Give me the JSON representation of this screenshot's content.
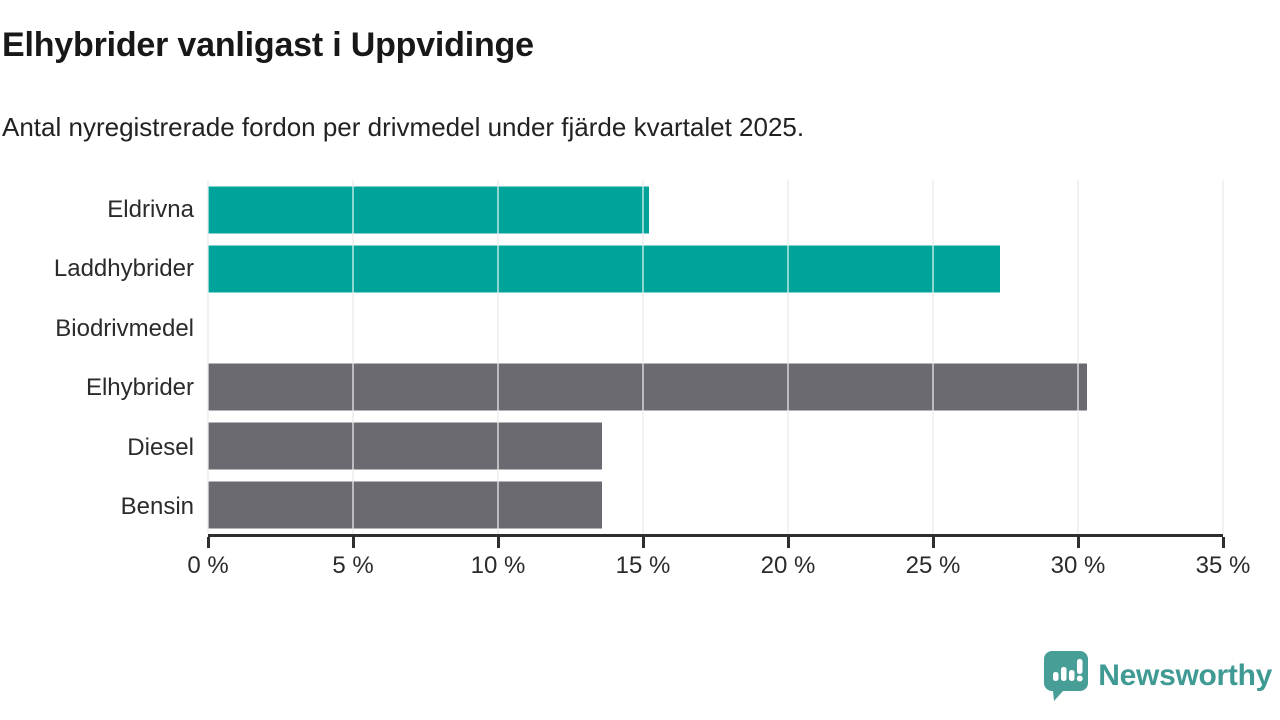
{
  "header": {
    "title": "Elhybrider vanligast i Uppvidinge",
    "subtitle": "Antal nyregistrerade fordon per drivmedel under fjärde kvartalet 2025."
  },
  "chart_data": {
    "type": "bar",
    "orientation": "horizontal",
    "categories": [
      "Eldrivna",
      "Laddhybrider",
      "Biodrivmedel",
      "Elhybrider",
      "Diesel",
      "Bensin"
    ],
    "values": [
      15.2,
      27.3,
      0,
      30.3,
      13.6,
      13.6
    ],
    "unit": "%",
    "bar_color_roles": [
      "highlight",
      "highlight",
      "highlight",
      "default",
      "default",
      "default"
    ],
    "colors": {
      "highlight": "#00a39a",
      "default": "#6b6a70",
      "axis": "#2e2e2e",
      "gridline": "#e2e2e2"
    },
    "xlim": [
      0,
      35
    ],
    "xticks": [
      0,
      5,
      10,
      15,
      20,
      25,
      30,
      35
    ],
    "xtick_labels": [
      "0 %",
      "5 %",
      "10 %",
      "15 %",
      "20 %",
      "25 %",
      "30 %",
      "35 %"
    ],
    "grid": true,
    "legend": false,
    "title": "Elhybrider vanligast i Uppvidinge",
    "subtitle": "Antal nyregistrerade fordon per drivmedel under fjärde kvartalet 2025.",
    "xlabel": "",
    "ylabel": ""
  },
  "footer": {
    "brand": "Newsworthy",
    "brand_color": "#3f9a94",
    "logo_icon": "speech-bubble-bar-chart-exclamation"
  }
}
